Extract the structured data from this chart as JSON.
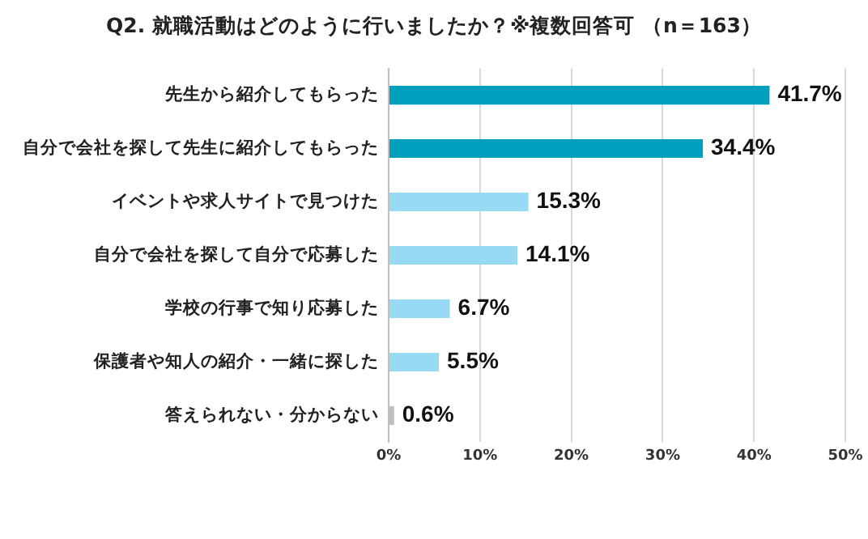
{
  "chart_data": {
    "type": "bar",
    "orientation": "horizontal",
    "title": "Q2.  就職活動はどのように行いましたか？※複数回答可 （n＝163）",
    "categories": [
      "先生から紹介してもらった",
      "自分で会社を探して先生に紹介してもらった",
      "イベントや求人サイトで見つけた",
      "自分で会社を探して自分で応募した",
      "学校の行事で知り応募した",
      "保護者や知人の紹介・一緒に探した",
      "答えられない・分からない"
    ],
    "values": [
      41.7,
      34.4,
      15.3,
      14.1,
      6.7,
      5.5,
      0.6
    ],
    "colors": [
      "#009fbd",
      "#009fbd",
      "#98d9f4",
      "#98d9f4",
      "#98d9f4",
      "#98d9f4",
      "#bfbfbf"
    ],
    "value_labels": [
      "41.7%",
      "34.4%",
      "15.3%",
      "14.1%",
      "6.7%",
      "5.5%",
      "0.6%"
    ],
    "xlim": [
      0,
      50
    ],
    "xticks": [
      {
        "value": 0,
        "label": "0%"
      },
      {
        "value": 10,
        "label": "10%"
      },
      {
        "value": 20,
        "label": "20%"
      },
      {
        "value": 30,
        "label": "30%"
      },
      {
        "value": 40,
        "label": "40%"
      },
      {
        "value": 50,
        "label": "50%"
      }
    ],
    "grid": "x",
    "legend": false
  }
}
